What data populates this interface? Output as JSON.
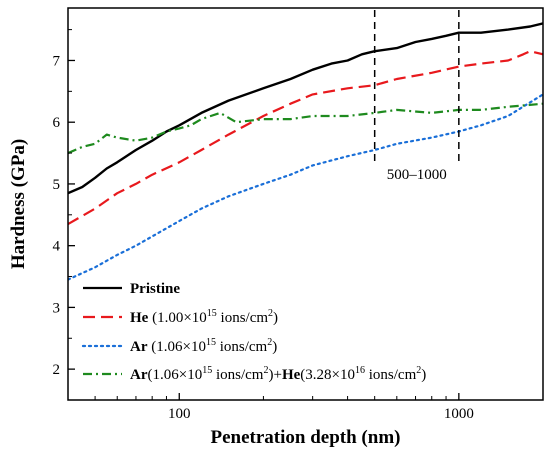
{
  "chart_data": {
    "type": "line",
    "xlabel": "Penetration depth (nm)",
    "ylabel": "Hardness (GPa)",
    "xscale": "log",
    "xlim": [
      40,
      2000
    ],
    "ylim": [
      1.5,
      7.85
    ],
    "x_ticks": [
      100,
      1000
    ],
    "x_tick_labels": [
      "100",
      "1000"
    ],
    "y_ticks": [
      2,
      3,
      4,
      5,
      6,
      7
    ],
    "y_tick_labels": [
      "2",
      "3",
      "4",
      "5",
      "6",
      "7"
    ],
    "grid": false,
    "legend_position": "bottom-left",
    "annotation": {
      "text": "500–1000",
      "x_lines": [
        500,
        1000
      ]
    },
    "series": [
      {
        "name": "Pristine",
        "legend": [
          {
            "text": "Pristine",
            "bold": true
          }
        ],
        "color": "#000000",
        "dash": "solid",
        "x": [
          40,
          45,
          50,
          55,
          60,
          70,
          80,
          90,
          100,
          120,
          150,
          200,
          250,
          300,
          350,
          400,
          450,
          500,
          600,
          700,
          800,
          900,
          1000,
          1200,
          1500,
          1800,
          2000
        ],
        "y": [
          4.85,
          4.95,
          5.1,
          5.25,
          5.35,
          5.55,
          5.7,
          5.85,
          5.95,
          6.15,
          6.35,
          6.55,
          6.7,
          6.85,
          6.95,
          7.0,
          7.1,
          7.15,
          7.2,
          7.3,
          7.35,
          7.4,
          7.45,
          7.45,
          7.5,
          7.55,
          7.6
        ]
      },
      {
        "name": "He (1.00×10^15 ions/cm^2)",
        "legend": [
          {
            "text": "He",
            "bold": true
          },
          {
            "text": " (1.00×10"
          },
          {
            "text": "15",
            "sup": true
          },
          {
            "text": " ions/cm"
          },
          {
            "text": "2",
            "sup": true
          },
          {
            "text": ")"
          }
        ],
        "color": "#e8191d",
        "dash": "long-dash",
        "x": [
          40,
          50,
          60,
          70,
          80,
          100,
          120,
          150,
          200,
          250,
          300,
          400,
          500,
          600,
          800,
          1000,
          1200,
          1500,
          1700,
          1800,
          2000
        ],
        "y": [
          4.35,
          4.6,
          4.85,
          5.0,
          5.15,
          5.35,
          5.55,
          5.8,
          6.1,
          6.3,
          6.45,
          6.55,
          6.6,
          6.7,
          6.8,
          6.9,
          6.95,
          7.0,
          7.1,
          7.15,
          7.1
        ]
      },
      {
        "name": "Ar (1.06×10^15 ions/cm^2)",
        "legend": [
          {
            "text": "Ar",
            "bold": true
          },
          {
            "text": " (1.06×10"
          },
          {
            "text": "15",
            "sup": true
          },
          {
            "text": " ions/cm"
          },
          {
            "text": "2",
            "sup": true
          },
          {
            "text": ")"
          }
        ],
        "color": "#1a6fd8",
        "dash": "dot",
        "x": [
          40,
          50,
          60,
          70,
          80,
          100,
          120,
          150,
          200,
          250,
          300,
          400,
          500,
          600,
          800,
          1000,
          1200,
          1500,
          2000
        ],
        "y": [
          3.45,
          3.65,
          3.85,
          4.0,
          4.15,
          4.4,
          4.6,
          4.8,
          5.0,
          5.15,
          5.3,
          5.45,
          5.55,
          5.65,
          5.75,
          5.85,
          5.95,
          6.1,
          6.45
        ]
      },
      {
        "name": "Ar(1.06×10^15 ions/cm^2)+He(3.28×10^16 ions/cm^2)",
        "legend": [
          {
            "text": "Ar",
            "bold": true
          },
          {
            "text": "(1.06×10"
          },
          {
            "text": "15",
            "sup": true
          },
          {
            "text": " ions/cm"
          },
          {
            "text": "2",
            "sup": true
          },
          {
            "text": ")+"
          },
          {
            "text": "He",
            "bold": true
          },
          {
            "text": "(3.28×10"
          },
          {
            "text": "16",
            "sup": true
          },
          {
            "text": " ions/cm"
          },
          {
            "text": "2",
            "sup": true
          },
          {
            "text": ")"
          }
        ],
        "color": "#1e8a1e",
        "dash": "dash-dot",
        "x": [
          40,
          45,
          50,
          55,
          60,
          70,
          80,
          90,
          100,
          110,
          120,
          140,
          160,
          200,
          250,
          300,
          400,
          500,
          600,
          800,
          1000,
          1200,
          1500,
          2000
        ],
        "y": [
          5.5,
          5.6,
          5.65,
          5.8,
          5.75,
          5.7,
          5.75,
          5.85,
          5.9,
          5.95,
          6.05,
          6.15,
          6.0,
          6.05,
          6.05,
          6.1,
          6.1,
          6.15,
          6.2,
          6.15,
          6.2,
          6.2,
          6.25,
          6.3
        ]
      }
    ]
  }
}
